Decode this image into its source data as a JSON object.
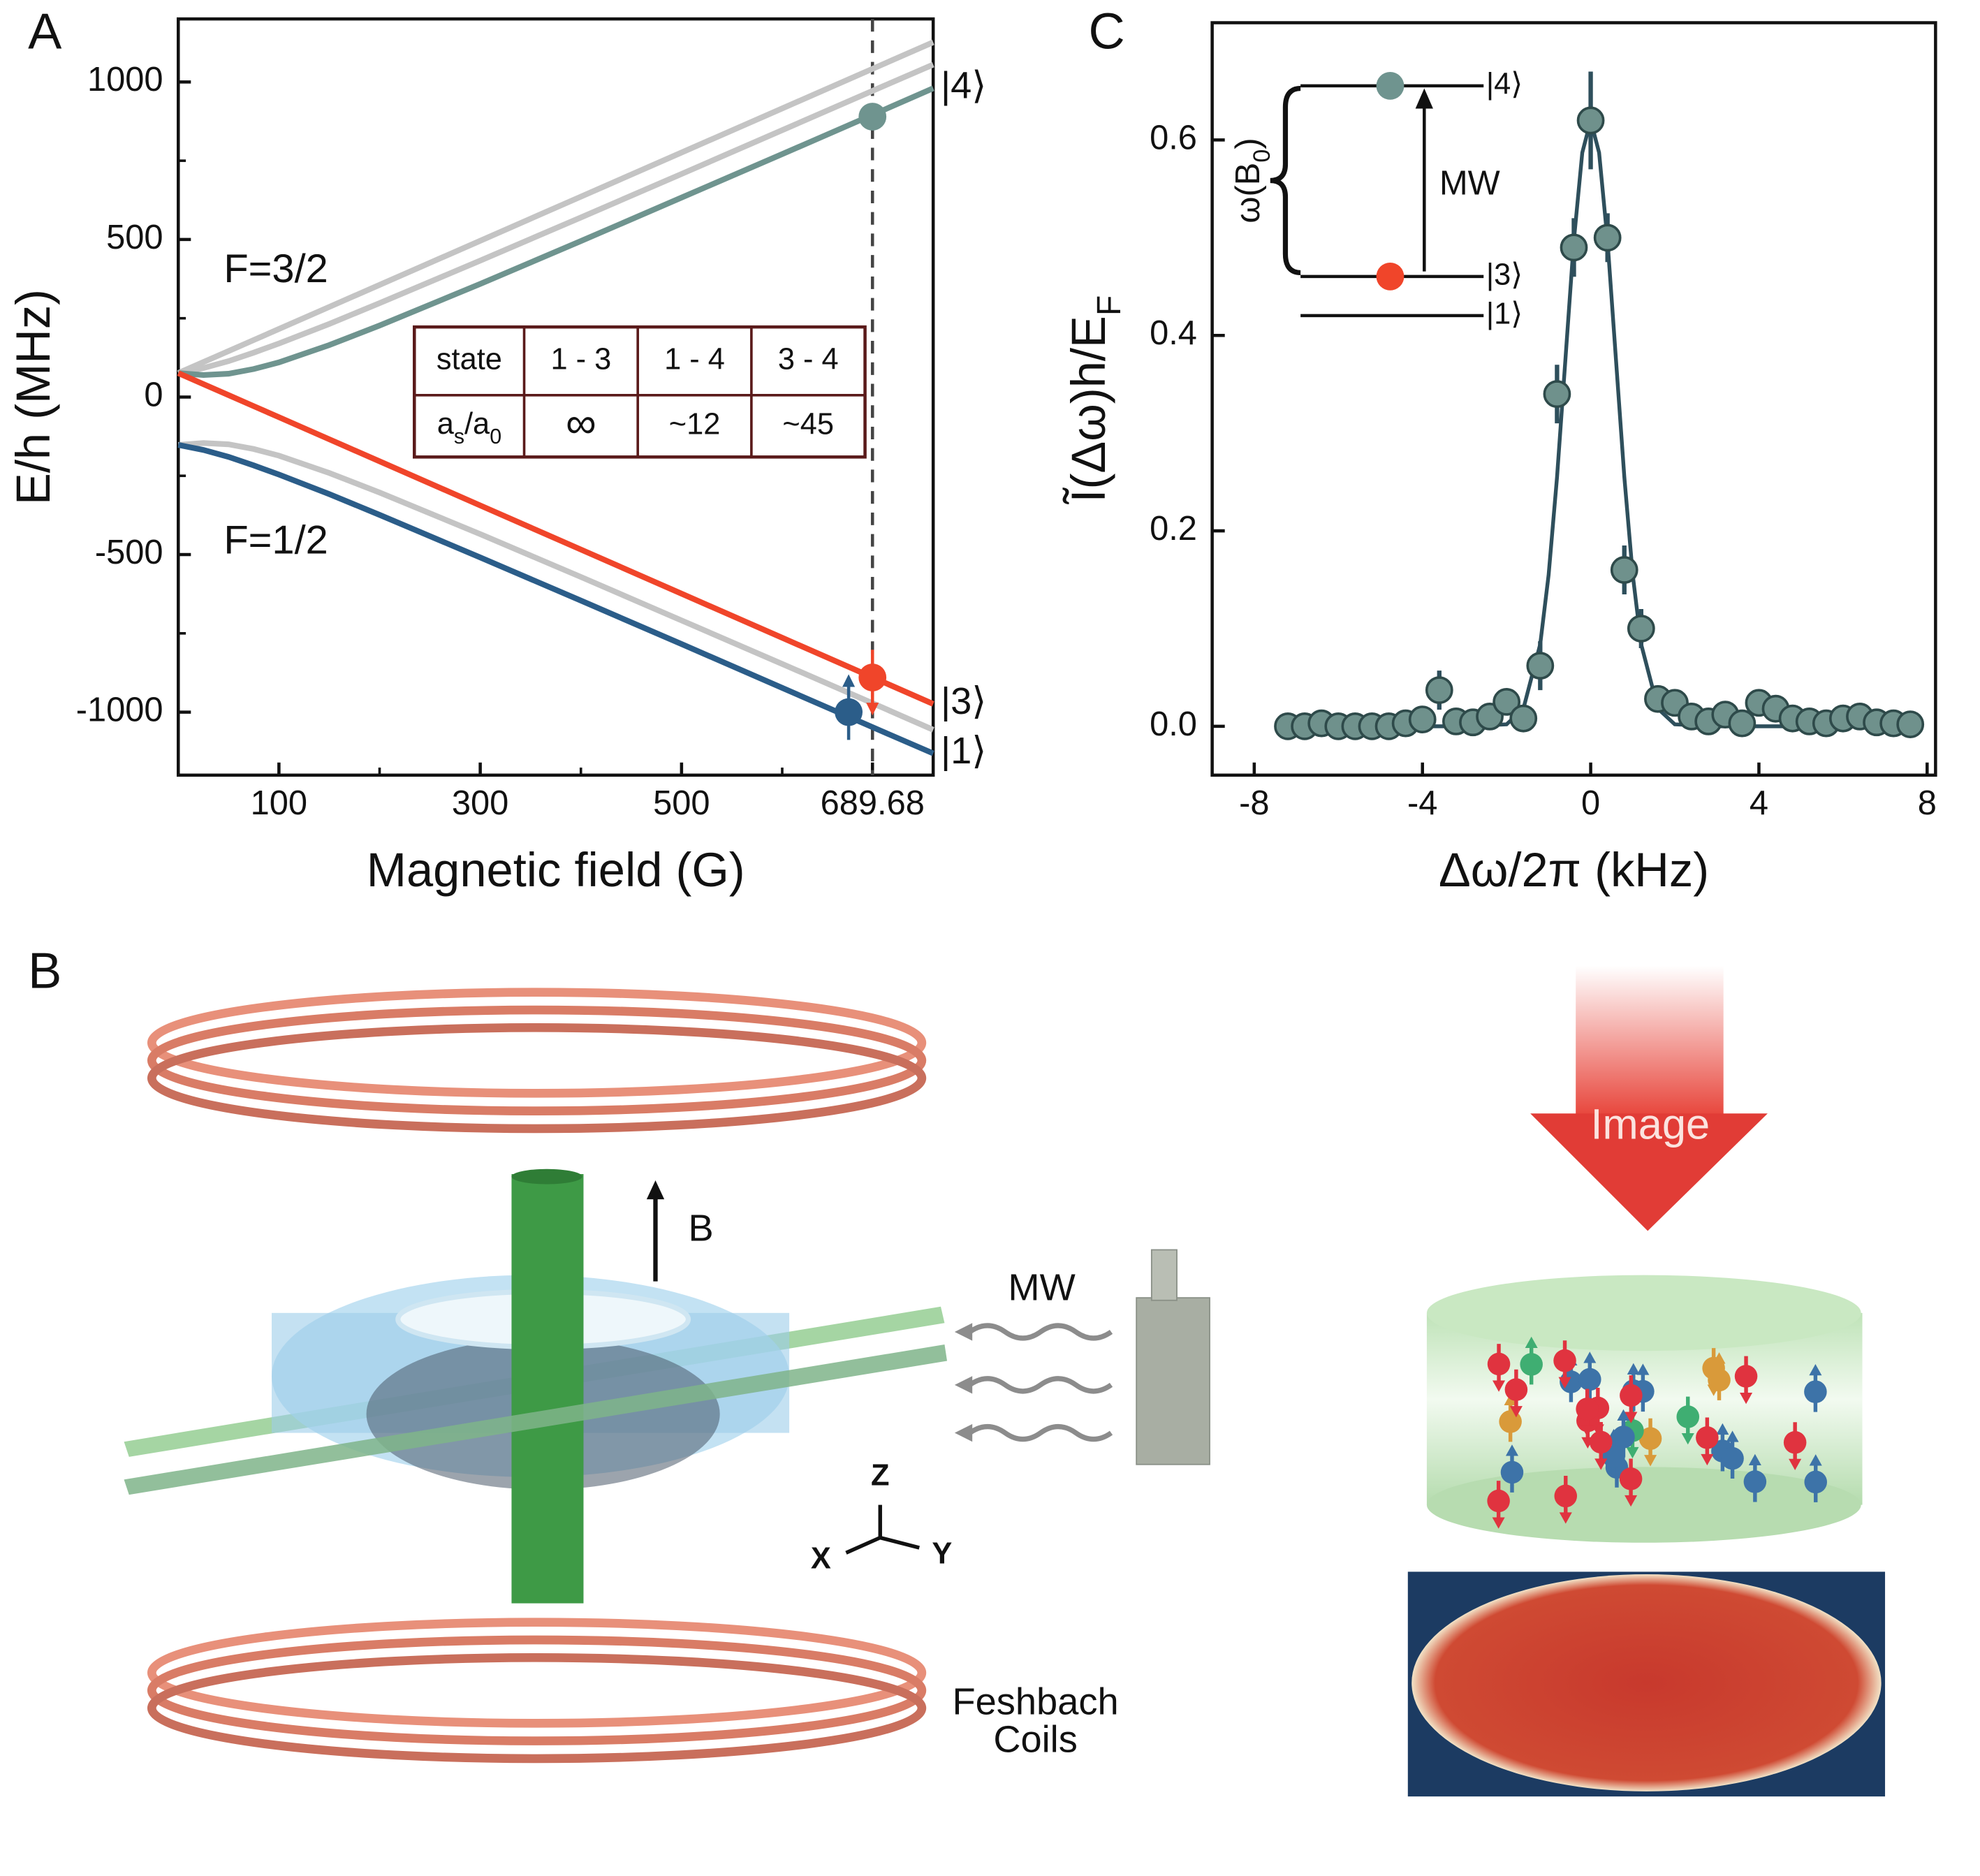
{
  "panel_labels": [
    "A",
    "B",
    "C"
  ],
  "chart_data": [
    {
      "type": "line",
      "xlabel": "Magnetic field (G)",
      "ylabel": "E/h (MHz)",
      "xlim": [
        0,
        750
      ],
      "ylim": [
        -1200,
        1200
      ],
      "xticks": [
        100,
        300,
        500,
        689.68
      ],
      "xminorticks": [
        200,
        400,
        600
      ],
      "yticks": [
        -1000,
        -500,
        0,
        500,
        1000
      ],
      "yminorticks": [
        -750,
        -250,
        250,
        750
      ],
      "x": [
        0,
        25,
        50,
        75,
        100,
        150,
        200,
        300,
        400,
        500,
        600,
        700,
        750
      ],
      "series": [
        {
          "color": "#c4c4c4",
          "values": [
            76,
            111,
            146,
            181,
            216,
            286,
            356,
            496,
            636,
            776,
            916,
            1056,
            1126
          ]
        },
        {
          "color": "#c4c4c4",
          "values": [
            76,
            92,
            114,
            141,
            170,
            232,
            298,
            433,
            570,
            708,
            847,
            986,
            1055
          ]
        },
        {
          "name": "|4⟩",
          "color": "#6f948f",
          "values": [
            76,
            70,
            74,
            89,
            110,
            165,
            227,
            359,
            495,
            633,
            771,
            910,
            980
          ]
        },
        {
          "color": "#c4c4c4",
          "values": [
            -152,
            -146,
            -150,
            -165,
            -186,
            -241,
            -303,
            -435,
            -571,
            -709,
            -847,
            -986,
            -1056
          ]
        },
        {
          "name": "|3⟩",
          "color": "#f0452a",
          "values": [
            76,
            41,
            6,
            -29,
            -64,
            -134,
            -204,
            -344,
            -484,
            -624,
            -764,
            -904,
            -974
          ]
        },
        {
          "name": "|1⟩",
          "color": "#2b5d89",
          "values": [
            -152,
            -168,
            -190,
            -217,
            -246,
            -308,
            -374,
            -509,
            -646,
            -784,
            -923,
            -1062,
            -1131
          ]
        }
      ],
      "markers": [
        {
          "x": 689.68,
          "y": 890,
          "color": "#6f948f"
        },
        {
          "x": 689.68,
          "y": -890,
          "color": "#f0452a",
          "spin": "down"
        },
        {
          "x": 666,
          "y": -1000,
          "color": "#2b5d89",
          "spin": "up"
        }
      ],
      "vline": 689.68,
      "annotations": [
        "F=3/2",
        "F=1/2"
      ],
      "table": {
        "rows": [
          [
            "state",
            "1 - 3",
            "1 - 4",
            "3 - 4"
          ],
          [
            [
              "a",
              "s",
              "/a",
              "0"
            ],
            "∞",
            "~12",
            "~45"
          ]
        ]
      }
    },
    {
      "type": "scatter",
      "xlabel": "Δω/2π (kHz)",
      "ylabel": [
        "Ĩ(Δω)h/E",
        "F"
      ],
      "xlim": [
        -9,
        8.2
      ],
      "ylim": [
        -0.05,
        0.72
      ],
      "xticks": [
        -8,
        -4,
        0,
        4,
        8
      ],
      "yticks": [
        {
          "value": 0,
          "label": "0.0"
        },
        0.2,
        0.4,
        0.6
      ],
      "color": "#6f918c",
      "x": [
        -7.2,
        -6.8,
        -6.4,
        -6,
        -5.6,
        -5.2,
        -4.8,
        -4.4,
        -4,
        -3.6,
        -3.2,
        -2.8,
        -2.4,
        -2,
        -1.6,
        -1.2,
        -0.8,
        -0.4,
        0,
        0.4,
        0.8,
        1.2,
        1.6,
        2,
        2.4,
        2.8,
        3.2,
        3.6,
        4,
        4.4,
        4.8,
        5.2,
        5.6,
        6,
        6.4,
        6.8,
        7.2,
        7.6
      ],
      "values": [
        0,
        0,
        0.003,
        0,
        0,
        0,
        0,
        0.003,
        0.007,
        0.037,
        0.005,
        0.004,
        0.01,
        0.025,
        0.008,
        0.062,
        0.34,
        0.49,
        0.62,
        0.5,
        0.16,
        0.1,
        0.028,
        0.024,
        0.01,
        0.005,
        0.012,
        0.003,
        0.024,
        0.018,
        0.008,
        0.005,
        0.003,
        0.008,
        0.01,
        0.004,
        0.003,
        0.002
      ],
      "errors": [
        0.006,
        0.006,
        0.006,
        0.006,
        0.006,
        0.006,
        0.006,
        0.006,
        0.008,
        0.02,
        0.008,
        0.008,
        0.008,
        0.012,
        0.01,
        0.025,
        0.03,
        0.03,
        0.05,
        0.025,
        0.025,
        0.02,
        0.01,
        0.008,
        0.008,
        0.008,
        0.008,
        0.008,
        0.01,
        0.008,
        0.008,
        0.008,
        0.008,
        0.008,
        0.008,
        0.006,
        0.006,
        0.006
      ],
      "fit": {
        "color": "#2e4f5c",
        "x": [
          -7.2,
          -3,
          -2,
          -1.6,
          -1.2,
          -1,
          -0.8,
          -0.6,
          -0.4,
          -0.2,
          0,
          0.2,
          0.4,
          0.6,
          0.8,
          1,
          1.2,
          1.6,
          2,
          3,
          7.6
        ],
        "values": [
          0,
          0,
          0.002,
          0.018,
          0.084,
          0.155,
          0.255,
          0.376,
          0.497,
          0.587,
          0.62,
          0.587,
          0.497,
          0.376,
          0.255,
          0.155,
          0.084,
          0.018,
          0.002,
          0,
          0
        ]
      },
      "inset": {
        "levels": [
          "|4⟩",
          "|3⟩",
          "|1⟩"
        ],
        "transition": "MW",
        "splitting": [
          "ω(B",
          "0",
          ")"
        ]
      }
    }
  ],
  "illustration": {
    "field": "B",
    "microwave": "MW",
    "axes": [
      "Z",
      "X",
      "Y"
    ],
    "coils": [
      "Feshbach",
      "Coils"
    ],
    "imaging": "Image"
  }
}
